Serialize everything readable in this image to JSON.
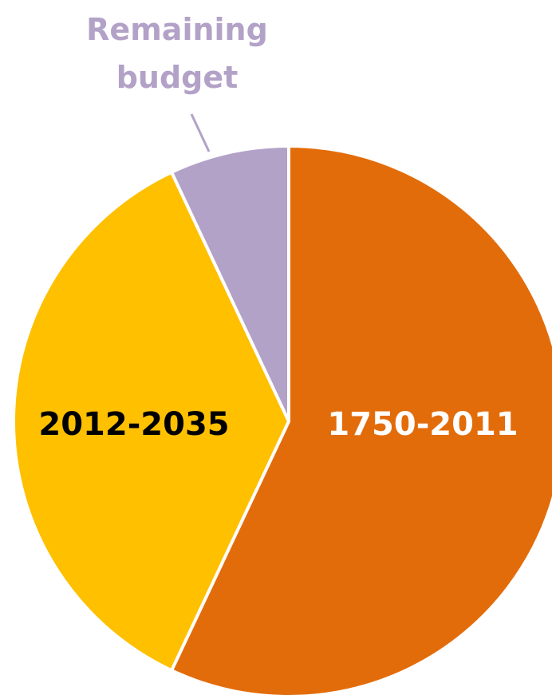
{
  "chart_data": {
    "type": "pie",
    "title": "",
    "series": [
      {
        "values": [
          57,
          36,
          7
        ]
      }
    ],
    "slices": [
      {
        "label": "1750-2011",
        "value": 57,
        "color": "#e36c0a",
        "label_color": "#ffffff"
      },
      {
        "label": "2012-2035",
        "value": 36,
        "color": "#ffc000",
        "label_color": "#000000"
      },
      {
        "label": "Remaining budget",
        "label_lines": [
          "Remaining",
          "budget"
        ],
        "value": 7,
        "color": "#b3a2c7",
        "label_color": "#b3a2c7"
      }
    ],
    "start_angle_deg": 0,
    "direction": "clockwise",
    "legend": "none"
  }
}
